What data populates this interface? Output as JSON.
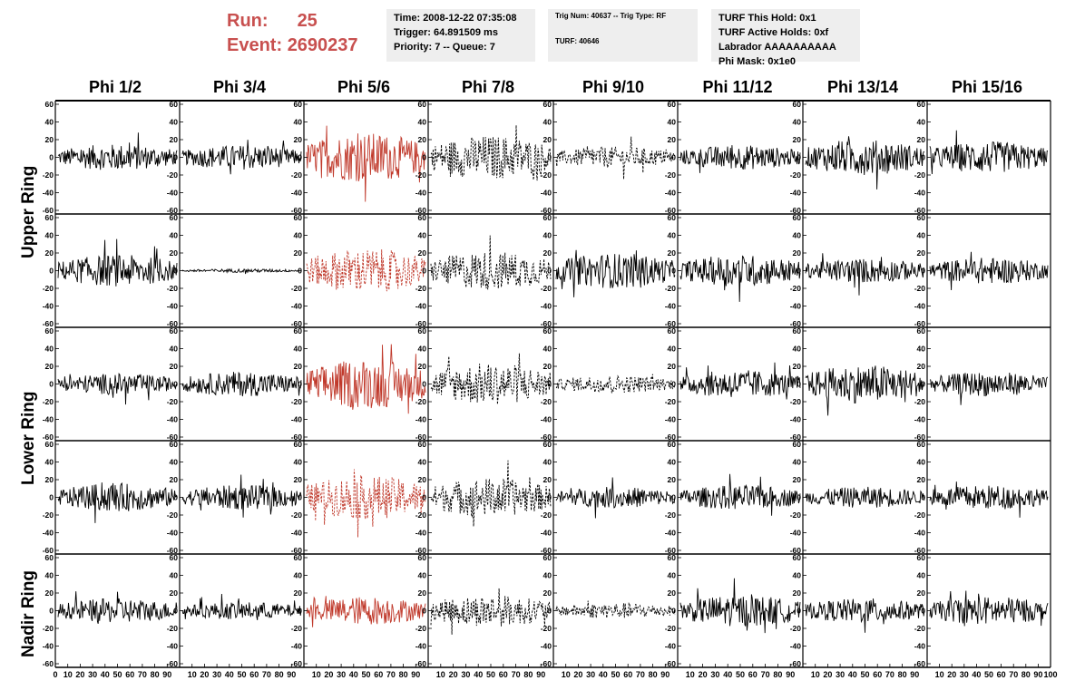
{
  "run_info": {
    "run_label": "Run:",
    "run_value": "25",
    "event_label": "Event:",
    "event_value": "2690237"
  },
  "time_box": {
    "time": "Time: 2008-12-22 07:35:08",
    "trigger": "Trigger: 64.891509 ms",
    "priority": "Priority: 7 -- Queue: 7"
  },
  "trig_box": {
    "trig": "Trig Num: 40637 -- Trig Type: RF",
    "turf": "TURF: 40646"
  },
  "turf_box": {
    "hold": "TURF This Hold: 0x1",
    "active": "TURF Active Holds: 0xf",
    "labrador": "Labrador AAAAAAAAAA",
    "phimask": "Phi Mask: 0x1e0"
  },
  "colors": {
    "highlight": "#c8504f",
    "trace": "#000000",
    "red_trace": "#c0392b"
  },
  "chart_data": {
    "type": "line",
    "columns": [
      "Phi 1/2",
      "Phi 3/4",
      "Phi 5/6",
      "Phi 7/8",
      "Phi 9/10",
      "Phi 11/12",
      "Phi 13/14",
      "Phi 15/16"
    ],
    "rows": [
      "Upper Ring",
      "Lower Ring",
      "Nadir Ring"
    ],
    "panel_rows": 5,
    "ylim": [
      -60,
      60
    ],
    "xlim": [
      0,
      100
    ],
    "yticks": [
      60,
      40,
      20,
      0,
      -20,
      -40,
      -60
    ],
    "xticks": [
      0,
      10,
      20,
      30,
      40,
      50,
      60,
      70,
      80,
      90,
      100
    ],
    "panels": [
      [
        {
          "amp": 15,
          "style": "solid",
          "color": "black"
        },
        {
          "amp": 14,
          "style": "solid",
          "color": "black"
        },
        {
          "amp": 28,
          "style": "solid",
          "color": "red"
        },
        {
          "amp": 25,
          "style": "dashed",
          "color": "black"
        },
        {
          "amp": 12,
          "style": "dashed",
          "color": "black"
        },
        {
          "amp": 14,
          "style": "solid",
          "color": "black"
        },
        {
          "amp": 20,
          "style": "solid",
          "color": "black"
        },
        {
          "amp": 18,
          "style": "solid",
          "color": "black"
        }
      ],
      [
        {
          "amp": 18,
          "style": "solid",
          "color": "black"
        },
        {
          "amp": 2,
          "style": "solid",
          "color": "black"
        },
        {
          "amp": 25,
          "style": "dashed",
          "color": "red"
        },
        {
          "amp": 22,
          "style": "dashed",
          "color": "black"
        },
        {
          "amp": 20,
          "style": "solid",
          "color": "black"
        },
        {
          "amp": 18,
          "style": "solid",
          "color": "black"
        },
        {
          "amp": 14,
          "style": "solid",
          "color": "black"
        },
        {
          "amp": 15,
          "style": "solid",
          "color": "black"
        }
      ],
      [
        {
          "amp": 12,
          "style": "solid",
          "color": "black"
        },
        {
          "amp": 14,
          "style": "solid",
          "color": "black"
        },
        {
          "amp": 28,
          "style": "solid",
          "color": "red"
        },
        {
          "amp": 24,
          "style": "dashed",
          "color": "black"
        },
        {
          "amp": 10,
          "style": "dashed",
          "color": "black"
        },
        {
          "amp": 16,
          "style": "solid",
          "color": "black"
        },
        {
          "amp": 22,
          "style": "solid",
          "color": "black"
        },
        {
          "amp": 14,
          "style": "solid",
          "color": "black"
        }
      ],
      [
        {
          "amp": 16,
          "style": "solid",
          "color": "black"
        },
        {
          "amp": 14,
          "style": "solid",
          "color": "black"
        },
        {
          "amp": 25,
          "style": "dashed",
          "color": "red"
        },
        {
          "amp": 22,
          "style": "dashed",
          "color": "black"
        },
        {
          "amp": 12,
          "style": "solid",
          "color": "black"
        },
        {
          "amp": 14,
          "style": "solid",
          "color": "black"
        },
        {
          "amp": 12,
          "style": "solid",
          "color": "black"
        },
        {
          "amp": 14,
          "style": "solid",
          "color": "black"
        }
      ],
      [
        {
          "amp": 14,
          "style": "solid",
          "color": "black"
        },
        {
          "amp": 10,
          "style": "solid",
          "color": "black"
        },
        {
          "amp": 16,
          "style": "solid",
          "color": "red"
        },
        {
          "amp": 18,
          "style": "dashed",
          "color": "black"
        },
        {
          "amp": 9,
          "style": "dashed",
          "color": "black"
        },
        {
          "amp": 18,
          "style": "solid",
          "color": "black"
        },
        {
          "amp": 14,
          "style": "solid",
          "color": "black"
        },
        {
          "amp": 16,
          "style": "solid",
          "color": "black"
        }
      ]
    ]
  }
}
